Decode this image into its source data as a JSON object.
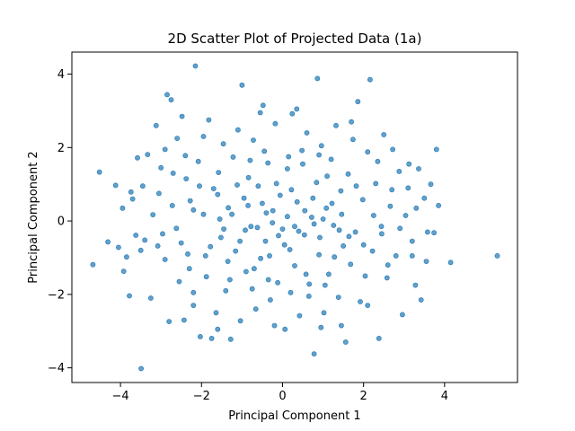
{
  "chart_data": {
    "type": "scatter",
    "title": "2D Scatter Plot of Projected Data (1a)",
    "xlabel": "Principal Component 1",
    "ylabel": "Principal Component 2",
    "xlim": [
      -5.2,
      5.8
    ],
    "ylim": [
      -4.4,
      4.6
    ],
    "xticks": [
      -4,
      -2,
      0,
      2,
      4
    ],
    "yticks": [
      -4,
      -2,
      0,
      2,
      4
    ],
    "xtick_labels": [
      "−4",
      "−2",
      "0",
      "2",
      "4"
    ],
    "ytick_labels": [
      "−4",
      "−2",
      "0",
      "2",
      "4"
    ],
    "grid": false,
    "marker_color": "#1f77b4",
    "marker_alpha": 0.7,
    "series": [
      {
        "points": [
          [
            -4.68,
            -1.19
          ],
          [
            -4.52,
            1.33
          ],
          [
            -4.31,
            -0.57
          ],
          [
            -4.12,
            0.97
          ],
          [
            -4.05,
            -0.72
          ],
          [
            -3.95,
            0.35
          ],
          [
            -3.92,
            -1.37
          ],
          [
            -3.85,
            -0.98
          ],
          [
            -3.78,
            -2.04
          ],
          [
            -3.74,
            0.79
          ],
          [
            -3.62,
            -0.39
          ],
          [
            -3.58,
            1.72
          ],
          [
            -3.49,
            -4.02
          ],
          [
            -3.45,
            0.95
          ],
          [
            -3.4,
            -0.52
          ],
          [
            -3.33,
            1.81
          ],
          [
            -3.25,
            -2.1
          ],
          [
            -3.2,
            0.17
          ],
          [
            -3.12,
            2.6
          ],
          [
            -3.08,
            -0.68
          ],
          [
            -3.0,
            1.45
          ],
          [
            -2.96,
            -0.35
          ],
          [
            -2.9,
            1.95
          ],
          [
            -2.85,
            3.44
          ],
          [
            -2.8,
            -2.74
          ],
          [
            -2.75,
            3.3
          ],
          [
            -2.72,
            0.42
          ],
          [
            -2.6,
            2.25
          ],
          [
            -2.55,
            -1.65
          ],
          [
            -2.48,
            2.85
          ],
          [
            -2.43,
            -2.7
          ],
          [
            -2.38,
            1.15
          ],
          [
            -2.34,
            -0.9
          ],
          [
            -2.28,
            0.55
          ],
          [
            -2.2,
            -2.3
          ],
          [
            -2.15,
            4.22
          ],
          [
            -2.08,
            1.62
          ],
          [
            -2.03,
            -3.15
          ],
          [
            -1.95,
            0.18
          ],
          [
            -1.88,
            -1.52
          ],
          [
            -1.82,
            2.75
          ],
          [
            -1.75,
            -3.2
          ],
          [
            -1.7,
            0.88
          ],
          [
            -1.64,
            -2.5
          ],
          [
            -1.58,
            1.32
          ],
          [
            -1.52,
            -0.45
          ],
          [
            -1.46,
            2.1
          ],
          [
            -1.4,
            -1.9
          ],
          [
            -1.34,
            0.36
          ],
          [
            -1.28,
            -3.22
          ],
          [
            -1.22,
            1.74
          ],
          [
            -1.16,
            -0.82
          ],
          [
            -1.1,
            2.48
          ],
          [
            -1.04,
            -2.72
          ],
          [
            -1.0,
            3.7
          ],
          [
            -0.95,
            0.62
          ],
          [
            -0.9,
            -1.38
          ],
          [
            -0.84,
            1.18
          ],
          [
            -0.78,
            -0.15
          ],
          [
            -0.72,
            2.2
          ],
          [
            -0.66,
            -2.4
          ],
          [
            -0.6,
            0.95
          ],
          [
            -0.54,
            -1.02
          ],
          [
            -0.48,
            3.15
          ],
          [
            -0.42,
            -0.55
          ],
          [
            -0.36,
            1.58
          ],
          [
            -0.3,
            -2.15
          ],
          [
            -0.24,
            0.28
          ],
          [
            -0.18,
            2.65
          ],
          [
            -0.12,
            -1.68
          ],
          [
            -0.06,
            0.7
          ],
          [
            0.0,
            -0.22
          ],
          [
            0.06,
            -2.95
          ],
          [
            0.12,
            1.42
          ],
          [
            0.18,
            -0.78
          ],
          [
            0.24,
            2.92
          ],
          [
            0.3,
            -1.22
          ],
          [
            0.36,
            0.52
          ],
          [
            0.42,
            -2.58
          ],
          [
            0.48,
            1.92
          ],
          [
            0.54,
            -0.38
          ],
          [
            0.6,
            2.4
          ],
          [
            0.66,
            -1.72
          ],
          [
            0.72,
            0.1
          ],
          [
            0.78,
            -3.62
          ],
          [
            0.84,
            1.05
          ],
          [
            0.9,
            -0.92
          ],
          [
            0.86,
            3.88
          ],
          [
            0.96,
            2.05
          ],
          [
            1.02,
            -2.5
          ],
          [
            1.08,
            0.35
          ],
          [
            1.14,
            -1.45
          ],
          [
            1.2,
            1.68
          ],
          [
            1.26,
            -0.12
          ],
          [
            1.32,
            2.6
          ],
          [
            1.38,
            -2.08
          ],
          [
            1.44,
            0.82
          ],
          [
            1.5,
            -0.68
          ],
          [
            1.56,
            -3.3
          ],
          [
            1.62,
            1.28
          ],
          [
            1.68,
            -1.18
          ],
          [
            1.74,
            2.22
          ],
          [
            1.8,
            -0.3
          ],
          [
            1.86,
            3.25
          ],
          [
            1.92,
            -2.2
          ],
          [
            1.98,
            0.58
          ],
          [
            2.04,
            -1.5
          ],
          [
            2.1,
            1.88
          ],
          [
            2.16,
            3.85
          ],
          [
            2.22,
            -0.82
          ],
          [
            2.3,
            1.02
          ],
          [
            2.38,
            -3.2
          ],
          [
            2.44,
            -0.15
          ],
          [
            2.5,
            2.35
          ],
          [
            2.58,
            -1.55
          ],
          [
            2.66,
            0.4
          ],
          [
            2.72,
            1.95
          ],
          [
            2.8,
            -0.95
          ],
          [
            2.88,
            1.35
          ],
          [
            2.96,
            -2.55
          ],
          [
            3.04,
            0.15
          ],
          [
            3.12,
            1.55
          ],
          [
            3.2,
            -0.55
          ],
          [
            3.28,
            -1.75
          ],
          [
            3.36,
            1.42
          ],
          [
            3.42,
            -2.15
          ],
          [
            3.5,
            0.62
          ],
          [
            3.58,
            -0.3
          ],
          [
            3.66,
            1.0
          ],
          [
            3.74,
            -0.32
          ],
          [
            3.8,
            1.95
          ],
          [
            3.85,
            0.42
          ],
          [
            4.15,
            -1.13
          ],
          [
            5.3,
            -0.95
          ],
          [
            -2.9,
            -1.05
          ],
          [
            -2.62,
            -0.2
          ],
          [
            -2.3,
            -1.3
          ],
          [
            -2.05,
            0.95
          ],
          [
            -1.78,
            -0.7
          ],
          [
            -1.55,
            0.05
          ],
          [
            -1.3,
            -1.6
          ],
          [
            -1.12,
            0.98
          ],
          [
            -0.92,
            -0.25
          ],
          [
            -0.7,
            -1.3
          ],
          [
            -0.5,
            0.48
          ],
          [
            -0.32,
            -0.95
          ],
          [
            -0.15,
            1.02
          ],
          [
            0.05,
            -0.65
          ],
          [
            0.22,
            0.85
          ],
          [
            0.4,
            -0.28
          ],
          [
            0.58,
            -1.45
          ],
          [
            0.75,
            0.62
          ],
          [
            0.92,
            -0.45
          ],
          [
            1.1,
            1.22
          ],
          [
            1.28,
            -0.98
          ],
          [
            1.46,
            0.18
          ],
          [
            1.64,
            -0.42
          ],
          [
            1.82,
            0.95
          ],
          [
            2.0,
            -0.65
          ],
          [
            -0.25,
            -0.05
          ],
          [
            0.12,
            0.12
          ],
          [
            -0.4,
            0.22
          ],
          [
            0.3,
            -0.15
          ],
          [
            -0.1,
            -0.4
          ],
          [
            0.55,
            0.28
          ],
          [
            -0.62,
            -0.18
          ],
          [
            0.78,
            -0.08
          ],
          [
            -0.85,
            0.42
          ],
          [
            1.0,
            0.05
          ],
          [
            -1.05,
            -0.55
          ],
          [
            1.22,
            0.48
          ],
          [
            -1.25,
            0.18
          ],
          [
            1.4,
            -0.25
          ],
          [
            -1.45,
            -0.22
          ],
          [
            -2.5,
            -0.6
          ],
          [
            -2.2,
            0.3
          ],
          [
            -1.9,
            -0.95
          ],
          [
            -1.6,
            0.72
          ],
          [
            -1.35,
            -1.1
          ],
          [
            2.25,
            0.15
          ],
          [
            2.45,
            -0.35
          ],
          [
            2.7,
            0.85
          ],
          [
            2.9,
            -0.2
          ],
          [
            3.1,
            0.9
          ],
          [
            -0.8,
            1.65
          ],
          [
            -0.45,
            1.9
          ],
          [
            0.15,
            1.75
          ],
          [
            0.5,
            1.55
          ],
          [
            0.9,
            1.8
          ],
          [
            -0.75,
            -1.85
          ],
          [
            -0.35,
            -1.6
          ],
          [
            0.2,
            -1.95
          ],
          [
            0.65,
            -2.05
          ],
          [
            1.05,
            -1.75
          ],
          [
            -2.7,
            1.3
          ],
          [
            -2.4,
            1.78
          ],
          [
            2.6,
            -1.2
          ],
          [
            2.35,
            1.62
          ],
          [
            -3.5,
            -0.8
          ],
          [
            3.3,
            0.35
          ],
          [
            -3.7,
            0.6
          ],
          [
            3.55,
            -1.1
          ],
          [
            -1.95,
            2.3
          ],
          [
            1.7,
            2.7
          ],
          [
            -1.6,
            -2.95
          ],
          [
            1.45,
            -2.85
          ],
          [
            -0.55,
            2.95
          ],
          [
            0.35,
            3.05
          ],
          [
            -0.2,
            -2.85
          ],
          [
            0.95,
            -2.9
          ],
          [
            -2.2,
            -1.95
          ],
          [
            2.1,
            -2.3
          ],
          [
            -3.05,
            0.75
          ],
          [
            3.2,
            -0.95
          ]
        ]
      }
    ]
  }
}
